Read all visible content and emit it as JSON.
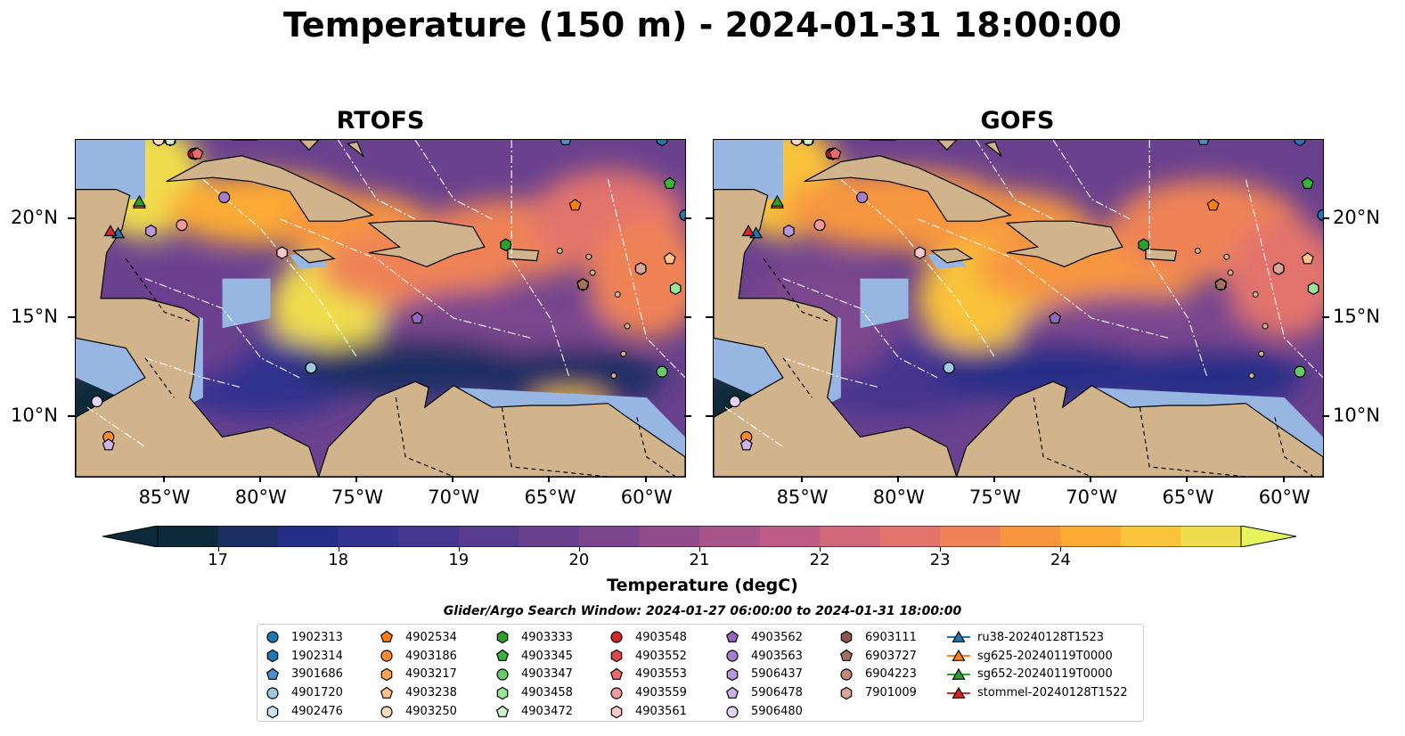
{
  "title": "Temperature (150 m) - 2024-01-31 18:00:00",
  "panels": [
    {
      "title": "RTOFS"
    },
    {
      "title": "GOFS"
    }
  ],
  "axes": {
    "lon_ticks": [
      "85°W",
      "80°W",
      "75°W",
      "70°W",
      "65°W",
      "60°W"
    ],
    "lat_ticks": [
      "20°N",
      "15°N",
      "10°N"
    ],
    "lon_range": [
      -89.6,
      -58.0
    ],
    "lat_range": [
      7.0,
      24.0
    ]
  },
  "colorbar": {
    "label": "Temperature (degC)",
    "ticks": [
      "17",
      "18",
      "19",
      "20",
      "21",
      "22",
      "23",
      "24"
    ],
    "range": [
      16.75,
      24.25
    ],
    "step": 0.5,
    "colors": [
      "#0d2a3a",
      "#1c2f63",
      "#262f87",
      "#33328f",
      "#45368f",
      "#563b8e",
      "#6a418e",
      "#7c468e",
      "#914c8c",
      "#a7548a",
      "#bd5d85",
      "#d1687b",
      "#e2736d",
      "#ef8357",
      "#f7963f",
      "#fbab34",
      "#f9c33a",
      "#f0dd4e"
    ],
    "extend": "both",
    "under_color": "#0d2a3a",
    "over_color": "#e6f35a"
  },
  "land_color": "#d2b48c",
  "shallow_color": "#97b6e1",
  "search_window": "Glider/Argo Search Window: 2024-01-27 06:00:00 to 2024-01-31 18:00:00",
  "legend": [
    [
      {
        "label": "1902313",
        "marker": "circle",
        "color": "#1f77b4"
      },
      {
        "label": "1902314",
        "marker": "hexagon",
        "color": "#1f77b4"
      },
      {
        "label": "3901686",
        "marker": "pentagon",
        "color": "#4a8fcf"
      },
      {
        "label": "4901720",
        "marker": "circle",
        "color": "#9ecae1"
      },
      {
        "label": "4902476",
        "marker": "hexagon",
        "color": "#c6e2f5"
      }
    ],
    [
      {
        "label": "4902534",
        "marker": "pentagon",
        "color": "#ff7f0e"
      },
      {
        "label": "4903186",
        "marker": "circle",
        "color": "#ff8c2e"
      },
      {
        "label": "4903217",
        "marker": "hexagon",
        "color": "#ffa64d"
      },
      {
        "label": "4903238",
        "marker": "pentagon",
        "color": "#ffc48a"
      },
      {
        "label": "4903250",
        "marker": "circle",
        "color": "#ffdcb8"
      }
    ],
    [
      {
        "label": "4903333",
        "marker": "hexagon",
        "color": "#2ca02c"
      },
      {
        "label": "4903345",
        "marker": "pentagon",
        "color": "#38b538"
      },
      {
        "label": "4903347",
        "marker": "circle",
        "color": "#66cc66"
      },
      {
        "label": "4903458",
        "marker": "hexagon",
        "color": "#99e699"
      },
      {
        "label": "4903472",
        "marker": "pentagon",
        "color": "#ccf5cc"
      }
    ],
    [
      {
        "label": "4903548",
        "marker": "circle",
        "color": "#d62728"
      },
      {
        "label": "4903552",
        "marker": "hexagon",
        "color": "#e04848"
      },
      {
        "label": "4903553",
        "marker": "pentagon",
        "color": "#ea6b6b"
      },
      {
        "label": "4903559",
        "marker": "circle",
        "color": "#f29a9a"
      },
      {
        "label": "4903561",
        "marker": "hexagon",
        "color": "#f9c7c7"
      }
    ],
    [
      {
        "label": "4903562",
        "marker": "pentagon",
        "color": "#9467bd"
      },
      {
        "label": "4903563",
        "marker": "circle",
        "color": "#a67fcc"
      },
      {
        "label": "5906437",
        "marker": "hexagon",
        "color": "#b897db"
      },
      {
        "label": "5906478",
        "marker": "pentagon",
        "color": "#ccb3e8"
      },
      {
        "label": "5906480",
        "marker": "circle",
        "color": "#e3d4f5"
      }
    ],
    [
      {
        "label": "6903111",
        "marker": "hexagon",
        "color": "#8c564b"
      },
      {
        "label": "6903727",
        "marker": "pentagon",
        "color": "#a5705f"
      },
      {
        "label": "6904223",
        "marker": "circle",
        "color": "#c08a78"
      },
      {
        "label": "7901009",
        "marker": "hexagon",
        "color": "#d9a899"
      }
    ],
    [
      {
        "label": "ru38-20240128T1523",
        "marker": "triangle-line",
        "color": "#1f77b4"
      },
      {
        "label": "sg625-20240119T0000",
        "marker": "triangle-line",
        "color": "#ff7f0e"
      },
      {
        "label": "sg652-20240119T0000",
        "marker": "triangle-line",
        "color": "#2ca02c"
      },
      {
        "label": "stommel-20240128T1522",
        "marker": "triangle-line",
        "color": "#d62728"
      }
    ]
  ],
  "markers_on_map": [
    {
      "label": "1902313",
      "lon": -58.0,
      "lat": 20.2
    },
    {
      "label": "1902314",
      "lon": -59.2,
      "lat": 24.0
    },
    {
      "label": "3901686",
      "lon": -64.2,
      "lat": 24.0
    },
    {
      "label": "4901720",
      "lon": -77.4,
      "lat": 12.5
    },
    {
      "label": "4902476",
      "lon": -85.3,
      "lat": 24.0
    },
    {
      "label": "4902534",
      "lon": -63.7,
      "lat": 20.7
    },
    {
      "label": "4903186",
      "lon": -87.9,
      "lat": 9.0
    },
    {
      "label": "4903217",
      "lon": -84.7,
      "lat": 24.0
    },
    {
      "label": "4903238",
      "lon": -58.8,
      "lat": 18.0
    },
    {
      "label": "4903250",
      "lon": -85.3,
      "lat": 24.0
    },
    {
      "label": "4903333",
      "lon": -67.3,
      "lat": 18.7
    },
    {
      "label": "4903345",
      "lon": -58.8,
      "lat": 21.8
    },
    {
      "label": "4903347",
      "lon": -59.2,
      "lat": 12.3
    },
    {
      "label": "4903458",
      "lon": -58.5,
      "lat": 16.5
    },
    {
      "label": "4903472",
      "lon": -84.7,
      "lat": 24.0
    },
    {
      "label": "4903548",
      "lon": -83.5,
      "lat": 23.3
    },
    {
      "label": "4903552",
      "lon": -83.4,
      "lat": 23.3
    },
    {
      "label": "4903553",
      "lon": -83.3,
      "lat": 23.3
    },
    {
      "label": "4903559",
      "lon": -84.1,
      "lat": 19.7
    },
    {
      "label": "4903561",
      "lon": -78.9,
      "lat": 18.3
    },
    {
      "label": "4903562",
      "lon": -71.9,
      "lat": 15.0
    },
    {
      "label": "4903563",
      "lon": -81.9,
      "lat": 21.1
    },
    {
      "label": "5906437",
      "lon": -85.7,
      "lat": 19.4
    },
    {
      "label": "5906478",
      "lon": -87.9,
      "lat": 8.6
    },
    {
      "label": "5906480",
      "lon": -88.5,
      "lat": 10.8
    },
    {
      "label": "6903111",
      "lon": -63.3,
      "lat": 16.7
    },
    {
      "label": "6903727",
      "lon": -63.3,
      "lat": 16.7
    },
    {
      "label": "6904223",
      "lon": -60.3,
      "lat": 17.5
    },
    {
      "label": "7901009",
      "lon": -60.3,
      "lat": 17.5
    },
    {
      "label": "ru38-20240128T1523",
      "lon": -87.4,
      "lat": 19.3
    },
    {
      "label": "sg625-20240119T0000",
      "lon": -86.3,
      "lat": 20.8
    },
    {
      "label": "sg652-20240119T0000",
      "lon": -86.3,
      "lat": 20.9
    },
    {
      "label": "stommel-20240128T1522",
      "lon": -87.8,
      "lat": 19.4
    }
  ]
}
